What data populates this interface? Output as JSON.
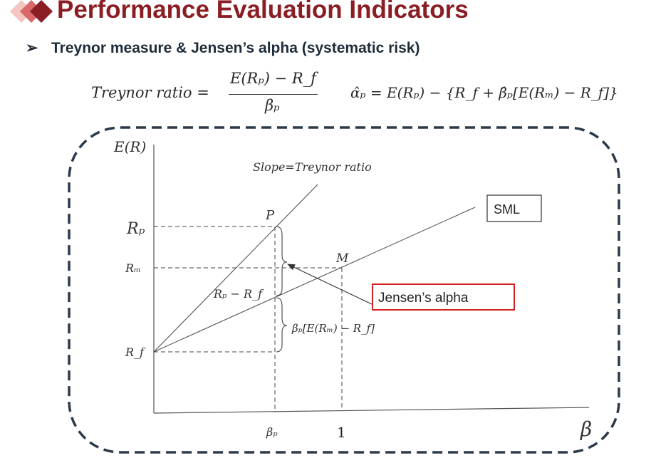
{
  "slide_title": "Performance Evaluation Indicators",
  "bullet": "Treynor measure & Jensen’s alpha (systematic risk)",
  "formulas": {
    "treynor_lhs": "Treynor ratio =",
    "treynor_num": "E(Rₚ) − R_f",
    "treynor_den": "βₚ",
    "alpha": "α̂ₚ = E(Rₚ) − {R_f + β̂ₚ[E(Rₘ) − R_f]}"
  },
  "diagram": {
    "y_axis_label": "E(R)",
    "x_axis_label": "β",
    "slope_label": "Slope=Treynor ratio",
    "point_p": "P",
    "point_m": "M",
    "tick_rp": "Rₚ",
    "tick_rm": "Rₘ",
    "tick_rf": "R_f",
    "tick_beta_p": "βₚ",
    "tick_one": "1",
    "label_rp_minus_rf": "Rₚ − R_f",
    "label_beta_premium": "βₚ[E(Rₘ) − R_f]",
    "sml_box": "SML",
    "jensen_box": "Jensen’s alpha"
  },
  "colors": {
    "title": "#8b1e24",
    "jensen_border": "#d42020",
    "dash_border": "#2b3a4a"
  }
}
